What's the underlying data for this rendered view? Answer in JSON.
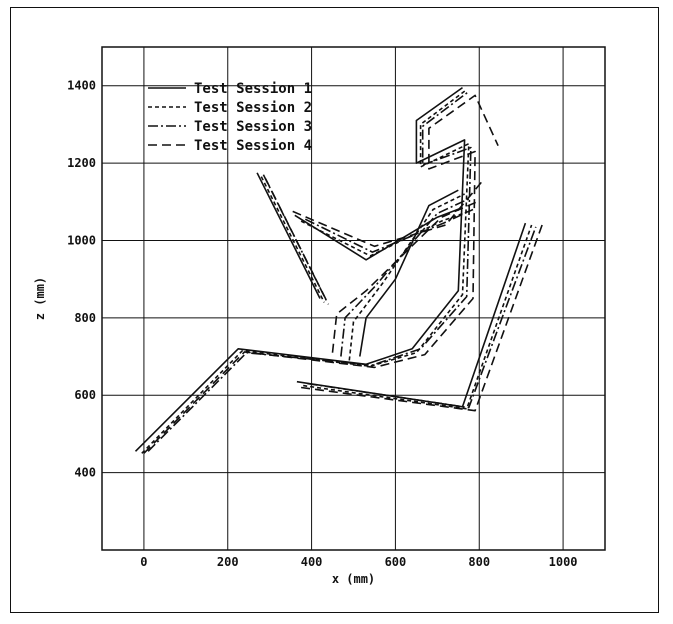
{
  "chart_data": {
    "type": "line",
    "title": "",
    "xlabel": "x (mm)",
    "ylabel": "z (mm)",
    "xlim": [
      -100,
      1100
    ],
    "ylim": [
      200,
      1500
    ],
    "xticks": [
      0,
      200,
      400,
      600,
      800,
      1000
    ],
    "yticks": [
      400,
      600,
      800,
      1000,
      1200,
      1400
    ],
    "xtick_labels": [
      "0",
      "200",
      "400",
      "600",
      "800",
      "1000"
    ],
    "ytick_labels": [
      "400",
      "600",
      "800",
      "1000",
      "1200",
      "1400"
    ],
    "grid": true,
    "legend_position": "top-left",
    "series": [
      {
        "name": "Test Session 1",
        "dash": "solid",
        "color": "#111111",
        "segments": [
          [
            [
              -20,
              455
            ],
            [
              225,
              720
            ],
            [
              530,
              680
            ],
            [
              640,
              720
            ],
            [
              750,
              870
            ],
            [
              765,
              1260
            ],
            [
              650,
              1200
            ],
            [
              650,
              1310
            ],
            [
              760,
              1395
            ]
          ],
          [
            [
              365,
              635
            ],
            [
              760,
              570
            ],
            [
              910,
              1045
            ]
          ],
          [
            [
              270,
              1175
            ],
            [
              420,
              850
            ]
          ],
          [
            [
              360,
              1065
            ],
            [
              530,
              950
            ],
            [
              700,
              1060
            ],
            [
              760,
              1085
            ]
          ],
          [
            [
              515,
              700
            ],
            [
              530,
              800
            ],
            [
              600,
              900
            ],
            [
              680,
              1090
            ],
            [
              750,
              1130
            ]
          ]
        ]
      },
      {
        "name": "Test Session 2",
        "dash": "4,3",
        "color": "#111111",
        "segments": [
          [
            [
              -5,
              450
            ],
            [
              235,
              715
            ],
            [
              540,
              675
            ],
            [
              650,
              710
            ],
            [
              760,
              860
            ],
            [
              775,
              1250
            ],
            [
              660,
              1190
            ],
            [
              660,
              1300
            ],
            [
              770,
              1390
            ]
          ],
          [
            [
              380,
              625
            ],
            [
              770,
              565
            ],
            [
              925,
              1040
            ]
          ],
          [
            [
              280,
              1165
            ],
            [
              430,
              840
            ]
          ],
          [
            [
              375,
              1050
            ],
            [
              540,
              960
            ],
            [
              710,
              1050
            ],
            [
              775,
              1075
            ]
          ],
          [
            [
              490,
              690
            ],
            [
              500,
              790
            ],
            [
              570,
              890
            ],
            [
              690,
              1080
            ],
            [
              765,
              1120
            ]
          ]
        ]
      },
      {
        "name": "Test Session 3",
        "dash": "10,3,2,3",
        "color": "#111111",
        "segments": [
          [
            [
              10,
              455
            ],
            [
              245,
              710
            ],
            [
              545,
              678
            ],
            [
              660,
              720
            ],
            [
              770,
              855
            ],
            [
              780,
              1240
            ],
            [
              665,
              1195
            ],
            [
              665,
              1295
            ],
            [
              775,
              1385
            ]
          ],
          [
            [
              390,
              630
            ],
            [
              775,
              568
            ],
            [
              935,
              1035
            ]
          ],
          [
            [
              285,
              1170
            ],
            [
              435,
              845
            ]
          ],
          [
            [
              385,
              1055
            ],
            [
              545,
              970
            ],
            [
              715,
              1045
            ],
            [
              785,
              1080
            ]
          ],
          [
            [
              470,
              700
            ],
            [
              480,
              800
            ],
            [
              550,
              880
            ],
            [
              700,
              1070
            ],
            [
              780,
              1110
            ]
          ]
        ]
      },
      {
        "name": "Test Session 4",
        "dash": "9,5",
        "color": "#111111",
        "segments": [
          [
            [
              0,
              450
            ],
            [
              240,
              712
            ],
            [
              550,
              672
            ],
            [
              670,
              705
            ],
            [
              785,
              850
            ],
            [
              790,
              1230
            ],
            [
              680,
              1185
            ],
            [
              680,
              1290
            ],
            [
              790,
              1375
            ],
            [
              845,
              1245
            ]
          ],
          [
            [
              375,
              620
            ],
            [
              790,
              560
            ],
            [
              950,
              1040
            ]
          ],
          [
            [
              290,
              1160
            ],
            [
              440,
              835
            ]
          ],
          [
            [
              355,
              1075
            ],
            [
              550,
              985
            ],
            [
              720,
              1040
            ],
            [
              805,
              1150
            ]
          ],
          [
            [
              450,
              710
            ],
            [
              460,
              810
            ],
            [
              530,
              870
            ],
            [
              710,
              1060
            ],
            [
              795,
              1100
            ]
          ]
        ]
      }
    ]
  }
}
